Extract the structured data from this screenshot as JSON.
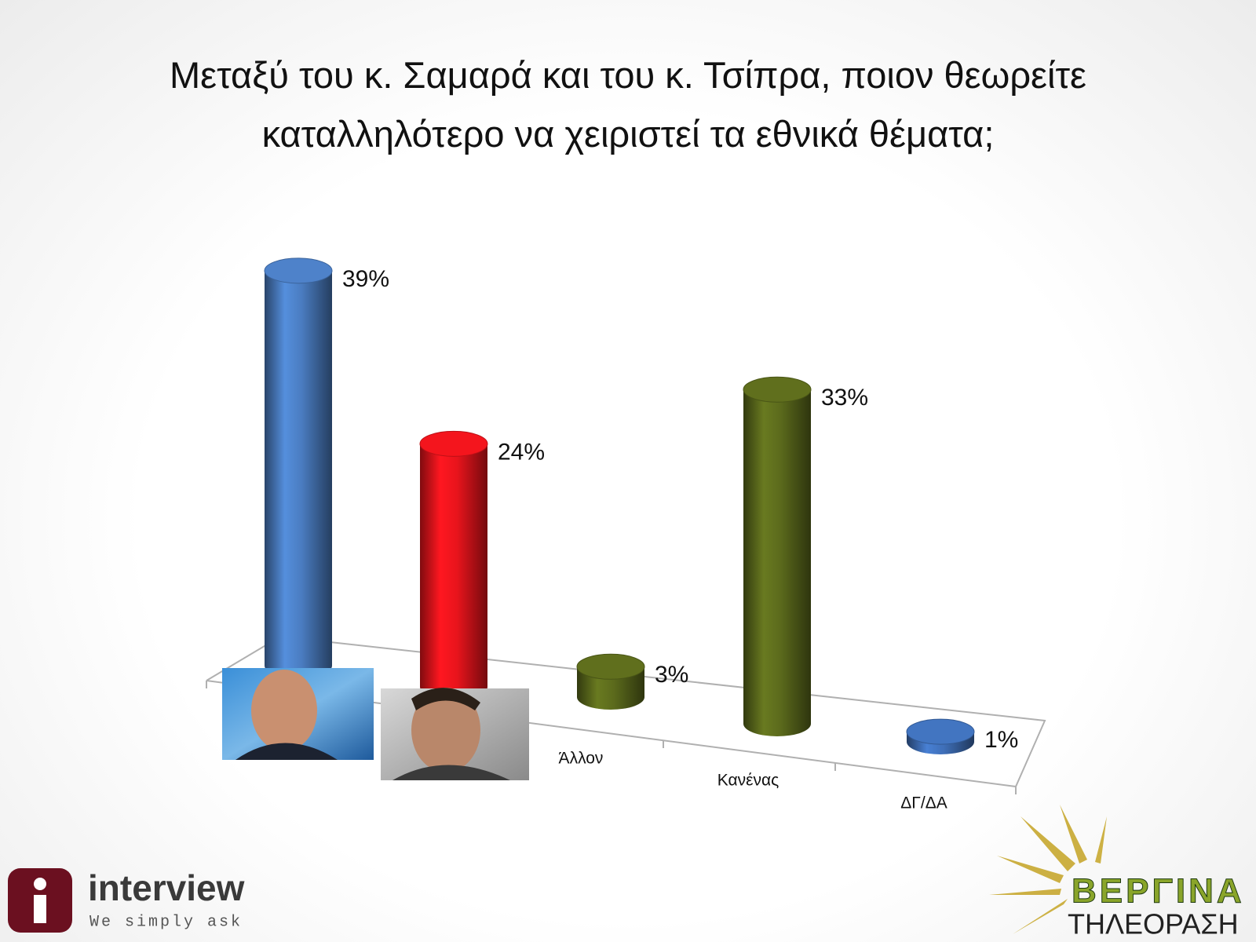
{
  "chart_data": {
    "type": "bar3d",
    "title": "Μεταξύ του κ. Σαμαρά και του κ. Τσίπρα, ποιον θεωρείτε καταλληλότερο να χειριστεί τα εθνικά θέματα;",
    "categories": [
      null,
      null,
      "Άλλον",
      "Κανένας",
      "ΔΓ/ΔΑ"
    ],
    "values": [
      39,
      24,
      3,
      33,
      1
    ],
    "value_labels": [
      "39%",
      "24%",
      "3%",
      "33%",
      "1%"
    ],
    "colors": [
      "#4a7cc0",
      "#e8141c",
      "#5b6a1c",
      "#5b6a1c",
      "#3f6fb8"
    ],
    "logos": [
      "interview",
      "We simply ask",
      "ΒΕΡΓΙΝΑ",
      "ΤΗΛΕΟΡΑΣΗ"
    ]
  }
}
